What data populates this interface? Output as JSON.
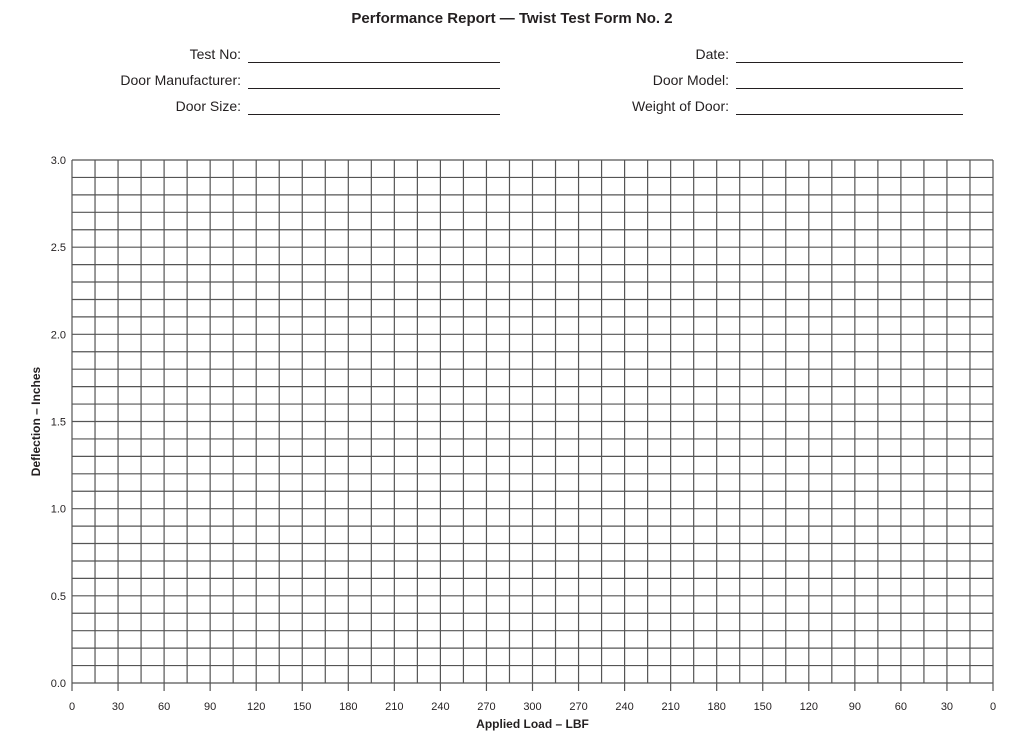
{
  "title": "Performance Report  —  Twist Test Form No. 2",
  "fields_left": [
    {
      "label": "Test No:",
      "value": ""
    },
    {
      "label": "Door Manufacturer:",
      "value": ""
    },
    {
      "label": "Door Size:",
      "value": ""
    }
  ],
  "fields_right": [
    {
      "label": "Date:",
      "value": ""
    },
    {
      "label": "Door Model:",
      "value": ""
    },
    {
      "label": "Weight of Door:",
      "value": ""
    }
  ],
  "chart_data": {
    "type": "line",
    "xlabel": "Applied Load – LBF",
    "ylabel": "Deflection – Inches",
    "x_tick_labels": [
      "0",
      "30",
      "60",
      "90",
      "120",
      "150",
      "180",
      "210",
      "240",
      "270",
      "300",
      "270",
      "240",
      "210",
      "180",
      "150",
      "120",
      "90",
      "60",
      "30",
      "0"
    ],
    "y_tick_labels": [
      "0.0",
      "0.5",
      "1.0",
      "1.5",
      "2.0",
      "2.5",
      "3.0"
    ],
    "ylim": [
      0,
      3.0
    ],
    "x_minor_divisions_per_label": 2,
    "y_minor_step": 0.1,
    "grid": true,
    "grid_color": "#555555",
    "series": []
  }
}
